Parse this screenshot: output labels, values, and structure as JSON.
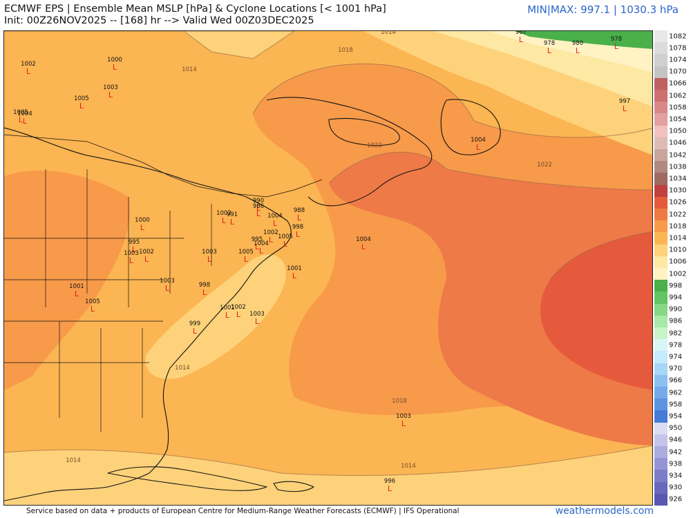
{
  "header": {
    "title_line1": "ECMWF EPS | Ensemble Mean MSLP [hPa] & Cyclone Locations [< 1001 hPa]",
    "title_line2": "Init: 00Z26NOV2025 -- [168] hr --> Valid Wed 00Z03DEC2025",
    "minmax": "MIN|MAX: 997.1 | 1030.3 hPa"
  },
  "footer": {
    "credit": "Service based on data + products of European Centre for Medium-Range Weather Forecasts (ECMWF) | IFS Operational",
    "brand": "weathermodels.com"
  },
  "colorbar": {
    "ticks": [
      "1082",
      "1078",
      "1074",
      "1070",
      "1066",
      "1062",
      "1058",
      "1054",
      "1050",
      "1046",
      "1042",
      "1038",
      "1034",
      "1030",
      "1026",
      "1022",
      "1018",
      "1014",
      "1010",
      "1006",
      "1002",
      "998",
      "994",
      "990",
      "986",
      "982",
      "978",
      "974",
      "970",
      "966",
      "962",
      "958",
      "954",
      "950",
      "946",
      "942",
      "938",
      "934",
      "930",
      "926"
    ],
    "colors": [
      "#e8e8e8",
      "#dcdcdc",
      "#d0d0d0",
      "#c4c4c4",
      "#c06060",
      "#cc7070",
      "#d88888",
      "#e4a0a0",
      "#f2c0c0",
      "#dcbcb4",
      "#c8a49a",
      "#b08a80",
      "#a06a62",
      "#c04040",
      "#e55a3c",
      "#f07a44",
      "#f79a4a",
      "#fbb552",
      "#fdd27a",
      "#fde8a4",
      "#fff3c4",
      "#4ab04a",
      "#62c462",
      "#86d886",
      "#a8e8a8",
      "#c8f4c8",
      "#d8f6f4",
      "#c4eafc",
      "#a8d6f6",
      "#8cc0f0",
      "#74aaea",
      "#5c94e2",
      "#467cd8",
      "#dcdcf2",
      "#c4c4ea",
      "#acacdf",
      "#9494d4",
      "#7c7cc8",
      "#6868bc",
      "#5858b0"
    ]
  },
  "map": {
    "isobar_labels": [
      "1014",
      "1018",
      "1022",
      "1022",
      "1018",
      "1014",
      "1014",
      "1014",
      "1014"
    ],
    "cyclones": [
      {
        "value": "967"
      },
      {
        "value": "978"
      },
      {
        "value": "980"
      },
      {
        "value": "978"
      },
      {
        "value": "997"
      },
      {
        "value": "1002"
      },
      {
        "value": "1000"
      },
      {
        "value": "1003"
      },
      {
        "value": "1005"
      },
      {
        "value": "1005"
      },
      {
        "value": "1004"
      },
      {
        "value": "990"
      },
      {
        "value": "986"
      },
      {
        "value": "1002"
      },
      {
        "value": "991"
      },
      {
        "value": "1004"
      },
      {
        "value": "988"
      },
      {
        "value": "998"
      },
      {
        "value": "995"
      },
      {
        "value": "1002"
      },
      {
        "value": "1004"
      },
      {
        "value": "1005"
      },
      {
        "value": "1004"
      },
      {
        "value": "1000"
      },
      {
        "value": "995"
      },
      {
        "value": "1002"
      },
      {
        "value": "1003"
      },
      {
        "value": "1003"
      },
      {
        "value": "1005"
      },
      {
        "value": "1001"
      },
      {
        "value": "1003"
      },
      {
        "value": "998"
      },
      {
        "value": "1001"
      },
      {
        "value": "1005"
      },
      {
        "value": "1002"
      },
      {
        "value": "1003"
      },
      {
        "value": "999"
      },
      {
        "value": "1001"
      },
      {
        "value": "1003"
      },
      {
        "value": "996"
      },
      {
        "value": "1004"
      }
    ]
  }
}
